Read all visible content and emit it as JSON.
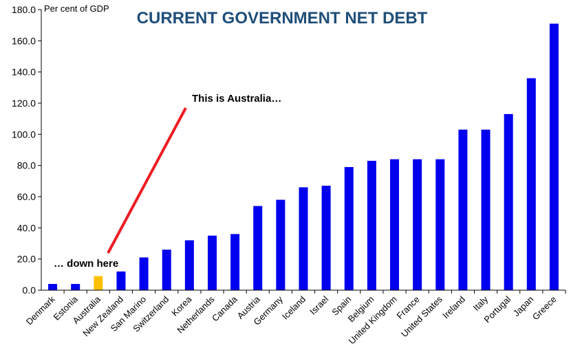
{
  "chart_data": {
    "type": "bar",
    "title": "CURRENT GOVERNMENT NET DEBT",
    "ylabel": "Per cent of GDP",
    "xlabel": "",
    "ylim": [
      0,
      180
    ],
    "yticks": [
      "0.0",
      "20.0",
      "40.0",
      "60.0",
      "80.0",
      "100.0",
      "120.0",
      "140.0",
      "160.0",
      "180.0"
    ],
    "grid": false,
    "categories": [
      "Denmark",
      "Estonia",
      "Australia",
      "New Zealand",
      "San Marino",
      "Switzerland",
      "Korea",
      "Netherlands",
      "Canada",
      "Austria",
      "Germany",
      "Iceland",
      "Israel",
      "Spain",
      "Belgium",
      "United Kingdom",
      "France",
      "United States",
      "Ireland",
      "Italy",
      "Portugal",
      "Japan",
      "Greece"
    ],
    "values": [
      4,
      4,
      9,
      12,
      21,
      26,
      32,
      35,
      36,
      54,
      58,
      66,
      67,
      79,
      83,
      84,
      84,
      84,
      103,
      103,
      113,
      136,
      171
    ],
    "bar_color": "#0000ee",
    "highlight_color": "#ffc000",
    "highlight_category": "Australia",
    "annotations": [
      {
        "text": "This is Australia…"
      },
      {
        "text": "… down here"
      }
    ],
    "arrow_color": "#ee1c25"
  }
}
